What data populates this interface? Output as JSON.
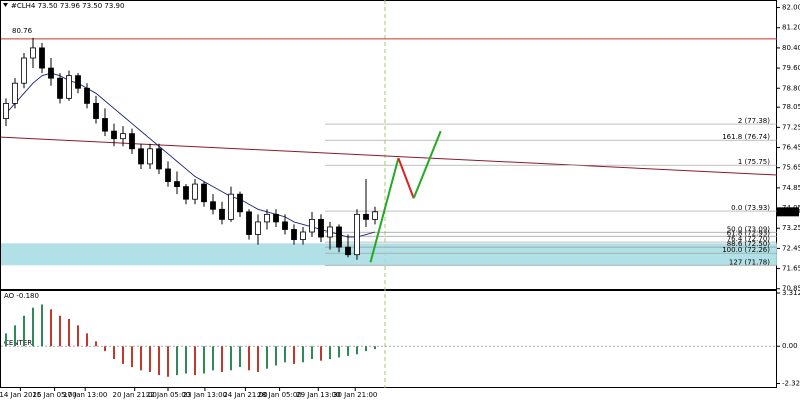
{
  "chart_data": [
    {
      "type": "candlestick",
      "title": "#CLH4 73.50 73.96 73.50 73.90",
      "categories": [
        null,
        null,
        null,
        null,
        null,
        null,
        null,
        null,
        null,
        null,
        null,
        null,
        null,
        null,
        null,
        null,
        null,
        null,
        null,
        null,
        null,
        null,
        null,
        null,
        null,
        null,
        null,
        null,
        null,
        null,
        null,
        null,
        null,
        null,
        null,
        null,
        null,
        null,
        null,
        null,
        null,
        null
      ],
      "open": [
        77.6,
        78.2,
        79.0,
        80.0,
        80.4,
        79.6,
        79.2,
        78.4,
        79.3,
        78.8,
        78.2,
        77.6,
        77.1,
        76.8,
        77.0,
        76.4,
        75.8,
        76.4,
        75.6,
        75.1,
        74.9,
        74.4,
        75.0,
        74.3,
        74.0,
        73.6,
        74.6,
        73.9,
        73.0,
        73.5,
        73.8,
        73.5,
        73.2,
        72.8,
        73.1,
        73.6,
        72.9,
        73.3,
        72.5,
        72.2,
        73.8,
        73.6
      ],
      "high": [
        78.4,
        79.2,
        80.2,
        80.8,
        80.6,
        80.0,
        79.4,
        79.5,
        79.4,
        79.0,
        78.5,
        78.0,
        77.4,
        77.3,
        77.2,
        76.6,
        76.6,
        76.6,
        75.9,
        75.5,
        75.0,
        75.2,
        75.1,
        74.6,
        74.3,
        74.9,
        74.7,
        74.0,
        73.8,
        74.0,
        74.0,
        73.8,
        73.4,
        73.3,
        73.9,
        73.8,
        73.5,
        73.4,
        73.0,
        74.0,
        75.2,
        74.1
      ],
      "low": [
        77.3,
        78.0,
        78.8,
        79.6,
        79.4,
        78.9,
        78.2,
        78.3,
        78.6,
        78.0,
        77.4,
        76.9,
        76.5,
        76.5,
        76.2,
        75.6,
        75.6,
        75.4,
        74.9,
        74.6,
        74.2,
        74.2,
        74.1,
        73.8,
        73.4,
        73.5,
        73.7,
        72.8,
        72.6,
        73.2,
        73.3,
        73.0,
        72.6,
        72.6,
        72.9,
        72.7,
        72.4,
        72.3,
        72.1,
        72.0,
        73.3,
        73.4
      ],
      "close": [
        78.2,
        79.0,
        80.0,
        80.4,
        79.6,
        79.2,
        78.4,
        79.3,
        78.8,
        78.2,
        77.6,
        77.1,
        76.8,
        77.0,
        76.4,
        75.8,
        76.4,
        75.6,
        75.1,
        74.9,
        74.4,
        75.0,
        74.3,
        74.0,
        73.6,
        74.6,
        73.9,
        73.0,
        73.5,
        73.8,
        73.5,
        73.2,
        72.8,
        73.1,
        73.6,
        72.9,
        73.3,
        72.5,
        72.2,
        73.8,
        73.6,
        73.9
      ],
      "ma": [
        77.8,
        78.2,
        78.6,
        79.0,
        79.3,
        79.4,
        79.3,
        79.1,
        79.0,
        78.8,
        78.6,
        78.3,
        78.0,
        77.7,
        77.4,
        77.1,
        76.8,
        76.5,
        76.2,
        75.9,
        75.6,
        75.3,
        75.1,
        74.9,
        74.7,
        74.5,
        74.4,
        74.2,
        74.0,
        73.9,
        73.8,
        73.7,
        73.5,
        73.4,
        73.3,
        73.2,
        73.1,
        73.0,
        72.9,
        72.9,
        73.0,
        73.1
      ],
      "ma_color": "#1a237e",
      "bull_color": "#ffffff",
      "bear_color": "#000000",
      "ylim": [
        70.8,
        82.3
      ],
      "yticks": [
        {
          "value": 82.0,
          "label": "82.00"
        },
        {
          "value": 81.2,
          "label": "81.20"
        },
        {
          "value": 80.4,
          "label": "80.40"
        },
        {
          "value": 79.6,
          "label": "79.60"
        },
        {
          "value": 78.8,
          "label": "78.80"
        },
        {
          "value": 78.05,
          "label": "78.05"
        },
        {
          "value": 77.25,
          "label": "77.25"
        },
        {
          "value": 76.45,
          "label": "76.45"
        },
        {
          "value": 75.65,
          "label": "75.65"
        },
        {
          "value": 74.85,
          "label": "74.85"
        },
        {
          "value": 74.05,
          "label": "74.05"
        },
        {
          "value": 73.25,
          "label": "73.25"
        },
        {
          "value": 72.45,
          "label": "72.45"
        },
        {
          "value": 71.65,
          "label": "71.65"
        },
        {
          "value": 70.85,
          "label": "70.85"
        }
      ],
      "xticks": [
        {
          "value": 1.6,
          "label": "14 Jan 2025"
        },
        {
          "value": 5.4,
          "label": "16 Jan 05:00"
        },
        {
          "value": 8.8,
          "label": "17 Jan 13:00"
        },
        {
          "value": 14.3,
          "label": "20 Jan 21:00"
        },
        {
          "value": 18,
          "label": "22 Jan 05:00"
        },
        {
          "value": 22.1,
          "label": "23 Jan 13:00"
        },
        {
          "value": 26.6,
          "label": "24 Jan 21:00"
        },
        {
          "value": 30.4,
          "label": "28 Jan 05:00"
        },
        {
          "value": 34.7,
          "label": "29 Jan 13:00"
        },
        {
          "value": 38.8,
          "label": "30 Jan 21:00"
        }
      ],
      "level": {
        "value": 80.76,
        "label": "80.76",
        "color": "#c0392b"
      },
      "trendline": [
        76.86,
        75.36
      ],
      "trendline_color": "#8b1a2b",
      "zone": [
        71.78,
        72.65
      ],
      "zone_color": "#a8dde3",
      "fib_levels": {
        "values": [
          77.38,
          76.74,
          75.75,
          73.93,
          73.09,
          72.93,
          72.7,
          72.5,
          72.26,
          71.78
        ],
        "value_labels": [
          "2 (77.38)",
          "161.8 (76.74)",
          "1 (75.75)",
          "0.0 (73.93)",
          "50.0 (73.09)",
          "61.8 (72.93)",
          "76.4 (72.70)",
          "88.6 (72.50)",
          "100.0 (72.26)",
          "127 (71.78)"
        ],
        "color": "#9a9a9a"
      },
      "forecast": {
        "x": [
          40.5,
          43.6,
          45.3,
          48.3
        ],
        "y": [
          71.9,
          76.03,
          74.44,
          77.1
        ],
        "colors": [
          "#22aa22",
          "#dd2222",
          "#22aa22"
        ]
      },
      "last_price": {
        "value": 73.9,
        "label": "73.90"
      }
    },
    {
      "type": "bar",
      "title": "AO -0.180",
      "center_label": "CENTER",
      "values": [
        0.8,
        1.3,
        1.9,
        2.4,
        2.6,
        2.3,
        1.9,
        1.7,
        1.3,
        0.8,
        0.3,
        -0.3,
        -0.8,
        -1.1,
        -1.3,
        -1.5,
        -1.6,
        -1.8,
        -1.9,
        -1.8,
        -1.7,
        -1.8,
        -1.7,
        -1.5,
        -1.6,
        -1.5,
        -1.3,
        -1.5,
        -1.6,
        -1.4,
        -1.2,
        -1.0,
        -1.1,
        -1.0,
        -0.8,
        -0.9,
        -0.8,
        -0.7,
        -0.6,
        -0.5,
        -0.3,
        -0.18
      ],
      "up_color": "#2e8b57",
      "down_color": "#c0392b",
      "ylim": [
        -2.6,
        3.5
      ],
      "yticks": [
        3.312,
        {
          "value": 0,
          "label": "0.00"
        },
        -2.32
      ]
    }
  ]
}
